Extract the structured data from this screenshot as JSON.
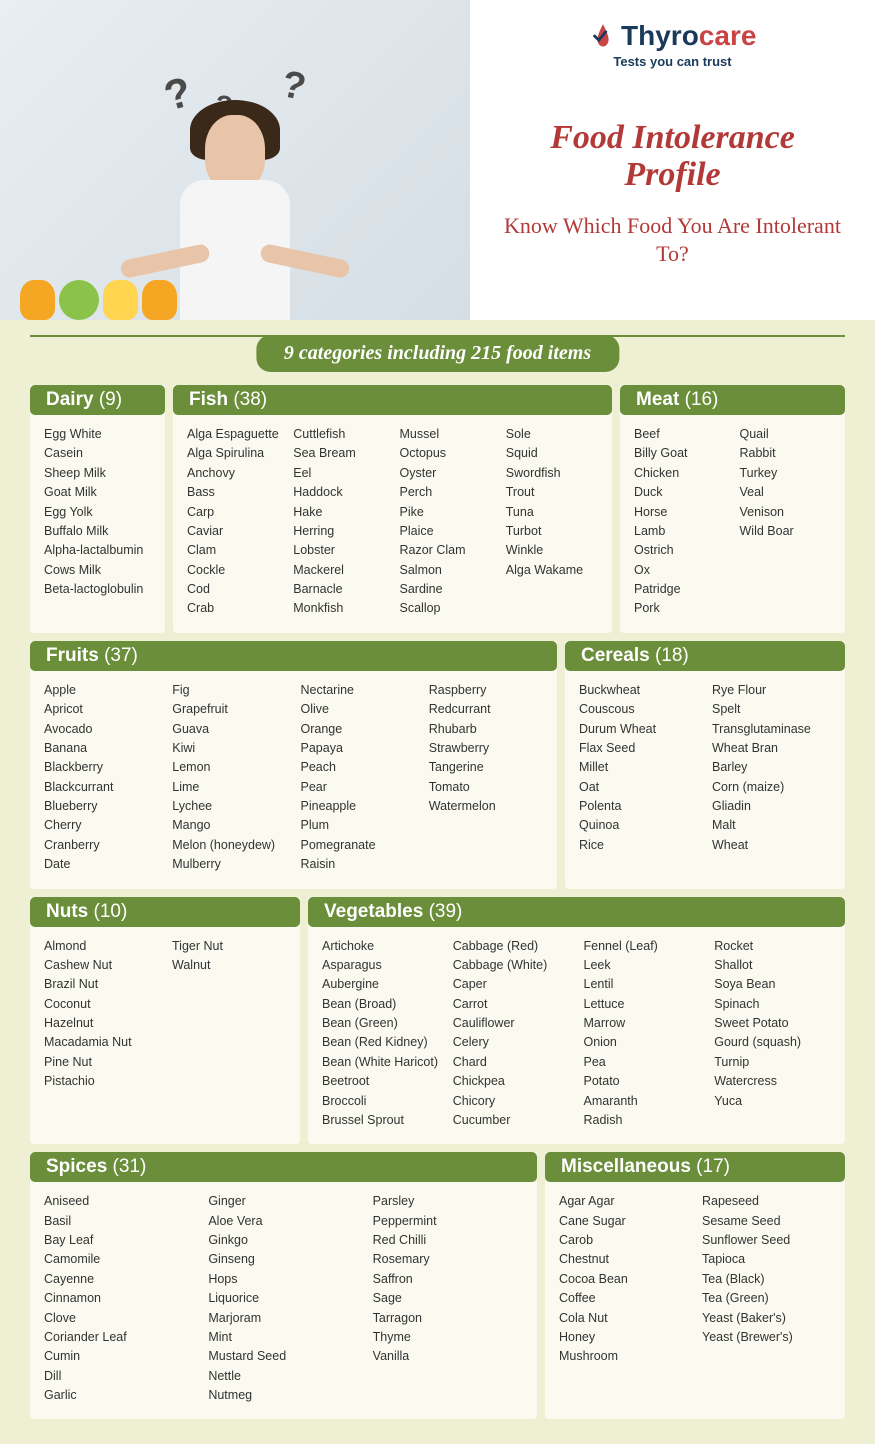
{
  "brand": {
    "name_part1": "Thyro",
    "name_part2": "care",
    "tagline": "Tests you can trust"
  },
  "title": "Food Intolerance Profile",
  "subtitle": "Know Which Food You Are Intolerant To?",
  "banner": "9 categories including 215 food items",
  "colors": {
    "header_bg": "#6b8e3a",
    "content_bg": "#eff0d3",
    "card_bg": "#fafaf0",
    "title_color": "#b33939",
    "brand_blue": "#1a3a5c",
    "brand_red": "#c94545"
  },
  "categories": {
    "dairy": {
      "name": "Dairy",
      "count": "(9)",
      "cols": [
        [
          "Egg White",
          "Casein",
          "Sheep Milk",
          "Goat Milk",
          "Egg Yolk",
          "Buffalo Milk",
          "Alpha-lactalbumin",
          "Cows Milk",
          "Beta-lactoglobulin"
        ]
      ]
    },
    "fish": {
      "name": "Fish",
      "count": "(38)",
      "cols": [
        [
          "Alga Espaguette",
          "Alga Spirulina",
          "Anchovy",
          "Bass",
          "Carp",
          "Caviar",
          "Clam",
          "Cockle",
          "Cod",
          "Crab"
        ],
        [
          "Cuttlefish",
          "Sea Bream",
          "Eel",
          "Haddock",
          "Hake",
          "Herring",
          "Lobster",
          "Mackerel",
          "Barnacle",
          "Monkfish"
        ],
        [
          "Mussel",
          "Octopus",
          "Oyster",
          "Perch",
          "Pike",
          "Plaice",
          "Razor Clam",
          "Salmon",
          "Sardine",
          "Scallop"
        ],
        [
          "Sole",
          "Squid",
          "Swordfish",
          "Trout",
          "Tuna",
          "Turbot",
          "Winkle",
          "Alga Wakame"
        ]
      ]
    },
    "meat": {
      "name": "Meat",
      "count": "(16)",
      "cols": [
        [
          "Beef",
          "Billy Goat",
          "Chicken",
          "Duck",
          "Horse",
          "Lamb",
          "Ostrich",
          "Ox",
          "Patridge",
          "Pork"
        ],
        [
          "Quail",
          "Rabbit",
          "Turkey",
          "Veal",
          "Venison",
          "Wild Boar"
        ]
      ]
    },
    "fruits": {
      "name": "Fruits",
      "count": "(37)",
      "cols": [
        [
          "Apple",
          "Apricot",
          "Avocado",
          "Banana",
          "Blackberry",
          "Blackcurrant",
          "Blueberry",
          "Cherry",
          "Cranberry",
          "Date"
        ],
        [
          "Fig",
          "Grapefruit",
          "Guava",
          "Kiwi",
          "Lemon",
          "Lime",
          "Lychee",
          "Mango",
          "Melon (honeydew)",
          "Mulberry"
        ],
        [
          "Nectarine",
          "Olive",
          "Orange",
          "Papaya",
          "Peach",
          "Pear",
          "Pineapple",
          "Plum",
          "Pomegranate",
          "Raisin"
        ],
        [
          "Raspberry",
          "Redcurrant",
          "Rhubarb",
          "Strawberry",
          "Tangerine",
          "Tomato",
          "Watermelon"
        ]
      ]
    },
    "cereals": {
      "name": "Cereals",
      "count": "(18)",
      "cols": [
        [
          "Buckwheat",
          "Couscous",
          "Durum Wheat",
          "Flax Seed",
          "Millet",
          "Oat",
          "Polenta",
          "Quinoa",
          "Rice"
        ],
        [
          "Rye Flour",
          "Spelt",
          "Transglutaminase",
          "Wheat Bran",
          "Barley",
          "Corn (maize)",
          "Gliadin",
          "Malt",
          "Wheat"
        ]
      ]
    },
    "nuts": {
      "name": "Nuts",
      "count": "(10)",
      "cols": [
        [
          "Almond",
          "Cashew Nut",
          "Brazil Nut",
          "Coconut",
          "Hazelnut",
          "Macadamia Nut",
          "Pine Nut",
          "Pistachio"
        ],
        [
          "Tiger Nut",
          "Walnut"
        ]
      ]
    },
    "vegetables": {
      "name": "Vegetables",
      "count": "(39)",
      "cols": [
        [
          "Artichoke",
          "Asparagus",
          "Aubergine",
          "Bean (Broad)",
          "Bean (Green)",
          "Bean (Red Kidney)",
          "Bean (White Haricot)",
          "Beetroot",
          "Broccoli",
          "Brussel Sprout"
        ],
        [
          "Cabbage (Red)",
          "Cabbage (White)",
          "Caper",
          "Carrot",
          "Cauliflower",
          "Celery",
          "Chard",
          "Chickpea",
          "Chicory",
          "Cucumber"
        ],
        [
          "Fennel (Leaf)",
          "Leek",
          "Lentil",
          "Lettuce",
          "Marrow",
          "Onion",
          "Pea",
          "Potato",
          "Amaranth",
          "Radish"
        ],
        [
          "Rocket",
          "Shallot",
          "Soya Bean",
          "Spinach",
          "Sweet Potato",
          "Gourd (squash)",
          "Turnip",
          "Watercress",
          "Yuca"
        ]
      ]
    },
    "spices": {
      "name": "Spices",
      "count": "(31)",
      "cols": [
        [
          "Aniseed",
          "Basil",
          "Bay Leaf",
          "Camomile",
          "Cayenne",
          "Cinnamon",
          "Clove",
          "Coriander Leaf",
          "Cumin",
          "Dill",
          "Garlic"
        ],
        [
          "Ginger",
          "Aloe Vera",
          "Ginkgo",
          "Ginseng",
          "Hops",
          "Liquorice",
          "Marjoram",
          "Mint",
          "Mustard Seed",
          "Nettle",
          "Nutmeg"
        ],
        [
          "Parsley",
          "Peppermint",
          "Red Chilli",
          "Rosemary",
          "Saffron",
          "Sage",
          "Tarragon",
          "Thyme",
          "Vanilla"
        ]
      ]
    },
    "misc": {
      "name": "Miscellaneous",
      "count": "(17)",
      "cols": [
        [
          "Agar Agar",
          "Cane Sugar",
          "Carob",
          "Chestnut",
          "Cocoa Bean",
          "Coffee",
          "Cola Nut",
          "Honey",
          "Mushroom"
        ],
        [
          "Rapeseed",
          "Sesame Seed",
          "Sunflower Seed",
          "Tapioca",
          "Tea (Black)",
          "Tea (Green)",
          "Yeast (Baker's)",
          "Yeast (Brewer's)"
        ]
      ]
    }
  }
}
